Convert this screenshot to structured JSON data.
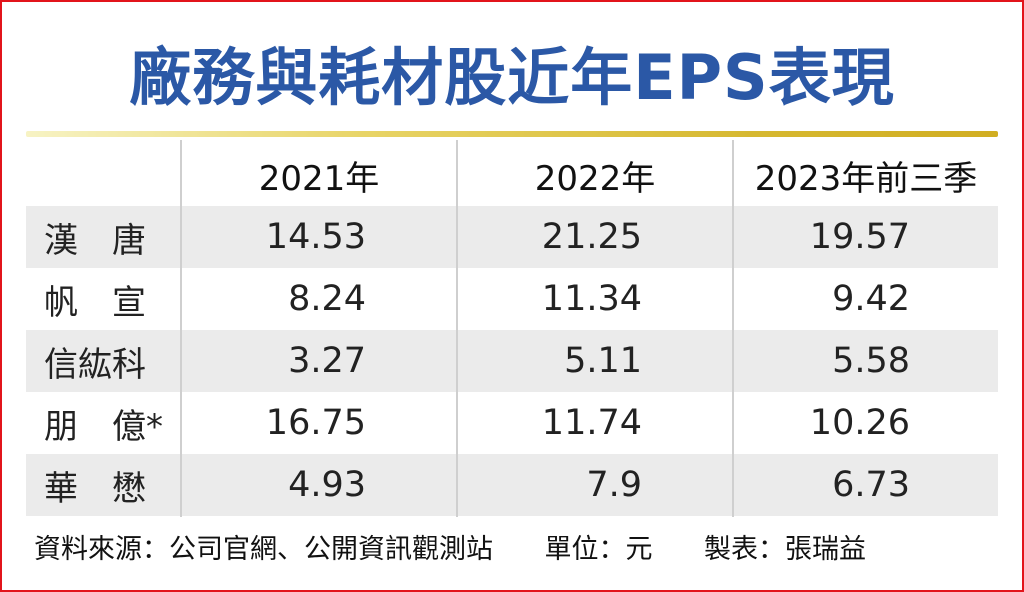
{
  "chart_data": {
    "type": "table",
    "title": "廠務與耗材股近年EPS表現",
    "columns": [
      "2021年",
      "2022年",
      "2023年前三季"
    ],
    "rows": [
      {
        "name": "漢　唐",
        "values": [
          "14.53",
          "21.25",
          "19.57"
        ]
      },
      {
        "name": "帆　宣",
        "values": [
          "8.24",
          "11.34",
          "9.42"
        ]
      },
      {
        "name": "信紘科",
        "values": [
          "3.27",
          "5.11",
          "5.58"
        ]
      },
      {
        "name": "朋　億*",
        "values": [
          "16.75",
          "11.74",
          "10.26"
        ]
      },
      {
        "name": "華　懋",
        "values": [
          "4.93",
          "7.9",
          "6.73"
        ]
      }
    ]
  },
  "footer": {
    "source": "資料來源：公司官網、公開資訊觀測站",
    "unit": "單位：元",
    "maker": "製表：張瑞益"
  },
  "colors": {
    "title": "#2b58a6",
    "border": "#e2141b",
    "stripe": "#ebebeb",
    "rule": "#d6b830"
  }
}
